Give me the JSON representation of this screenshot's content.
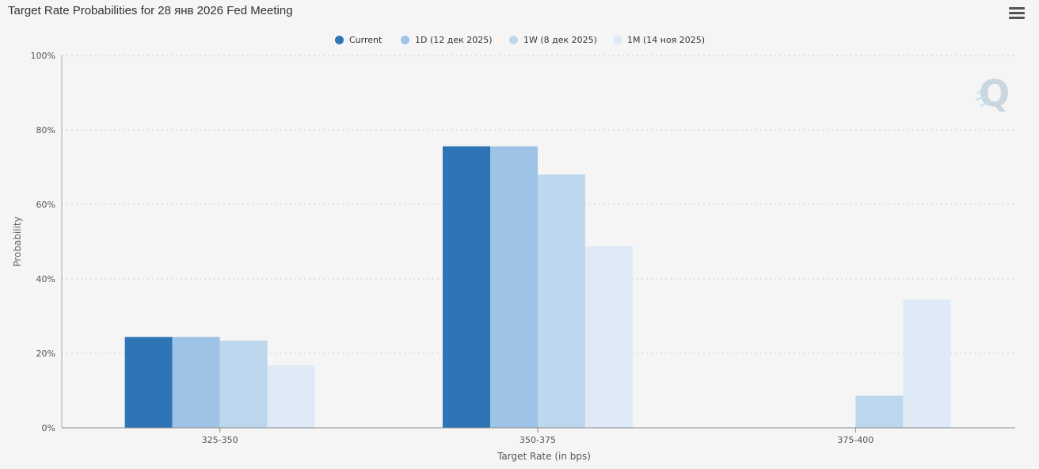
{
  "title": "Target Rate Probabilities for 28 янв 2026 Fed Meeting",
  "menu": {
    "icon": "hamburger-menu-icon"
  },
  "watermark": {
    "icon": "q-logo-icon",
    "letter": "Q"
  },
  "colors": {
    "background": "#f5f5f5",
    "grid": "#cccccc",
    "axis": "#888888",
    "series": [
      "#2e75b6",
      "#9dc3e6",
      "#bdd7ee",
      "#deebf7"
    ]
  },
  "chart_data": {
    "type": "bar",
    "title": "Target Rate Probabilities for 28 янв 2026 Fed Meeting",
    "xlabel": "Target Rate (in bps)",
    "ylabel": "Probability",
    "categories": [
      "325-350",
      "350-375",
      "375-400"
    ],
    "series": [
      {
        "name": "Current",
        "values": [
          24.4,
          75.6,
          0
        ]
      },
      {
        "name": "1D (12 дек 2025)",
        "values": [
          24.4,
          75.6,
          0
        ]
      },
      {
        "name": "1W (8 дек 2025)",
        "values": [
          23.4,
          68.0,
          8.6
        ]
      },
      {
        "name": "1M (14 ноя 2025)",
        "values": [
          16.8,
          48.8,
          34.5
        ]
      }
    ],
    "ylim": [
      0,
      100
    ],
    "yticks": [
      "0%",
      "20%",
      "40%",
      "60%",
      "80%",
      "100%"
    ],
    "yticks_values": [
      0,
      20,
      40,
      60,
      80,
      100
    ],
    "grid": true,
    "legend_position": "top-center"
  }
}
